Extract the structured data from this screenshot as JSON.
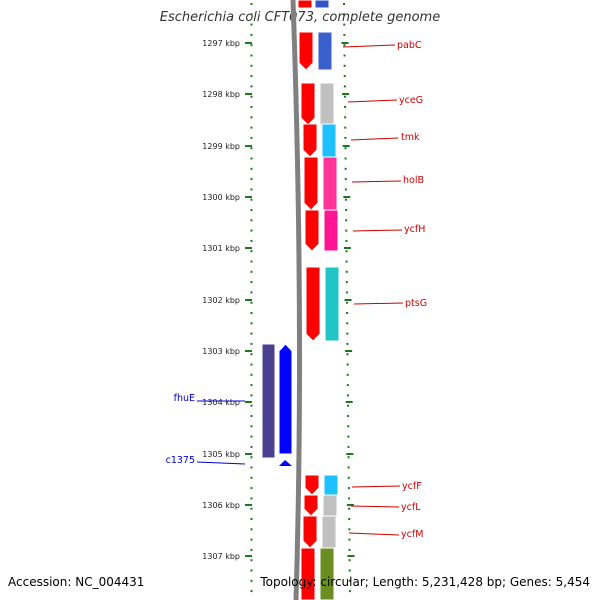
{
  "title": "Escherichia coli CFT073, complete genome",
  "accession_text": "Accession: NC_004431",
  "topology_text": "Topology: circular; Length: 5,231,428 bp; Genes: 5,454",
  "colors": {
    "backbone": "#808080",
    "scale_tick": "#1a7a1a",
    "forward_gene": "#ff0000",
    "reverse_gene": "#0000ff",
    "forward_label": "#cc0000",
    "reverse_label": "#0000cc"
  },
  "scale": {
    "ticks": [
      {
        "label": "1297 kbp"
      },
      {
        "label": "1298 kbp"
      },
      {
        "label": "1299 kbp"
      },
      {
        "label": "1300 kbp"
      },
      {
        "label": "1301 kbp"
      },
      {
        "label": "1302 kbp"
      },
      {
        "label": "1303 kbp"
      },
      {
        "label": "1304 kbp"
      },
      {
        "label": "1305 kbp"
      },
      {
        "label": "1306 kbp"
      },
      {
        "label": "1307 kbp"
      }
    ]
  },
  "genes_forward": [
    {
      "name": "",
      "cog_color": "#3355cc"
    },
    {
      "name": "pabC",
      "cog_color": "#3a5fcd"
    },
    {
      "name": "yceG",
      "cog_color": "#c0c0c0"
    },
    {
      "name": "tmk",
      "cog_color": "#1ec0ff"
    },
    {
      "name": "holB",
      "cog_color": "#ff3399"
    },
    {
      "name": "ycfH",
      "cog_color": "#ff1493"
    },
    {
      "name": "ptsG",
      "cog_color": "#20c6c6"
    },
    {
      "name": "ycfF",
      "cog_color": "#1ec0ff"
    },
    {
      "name": "ycfL",
      "cog_color": "#c0c0c0"
    },
    {
      "name": "ycfM",
      "cog_color": "#c0c0c0"
    },
    {
      "name": "",
      "cog_color": "#6b8e23"
    }
  ],
  "genes_reverse": [
    {
      "name": "fhuE",
      "cog_color": "#4b3f8f"
    },
    {
      "name": "c1375",
      "cog_color": "#0000ff"
    }
  ]
}
